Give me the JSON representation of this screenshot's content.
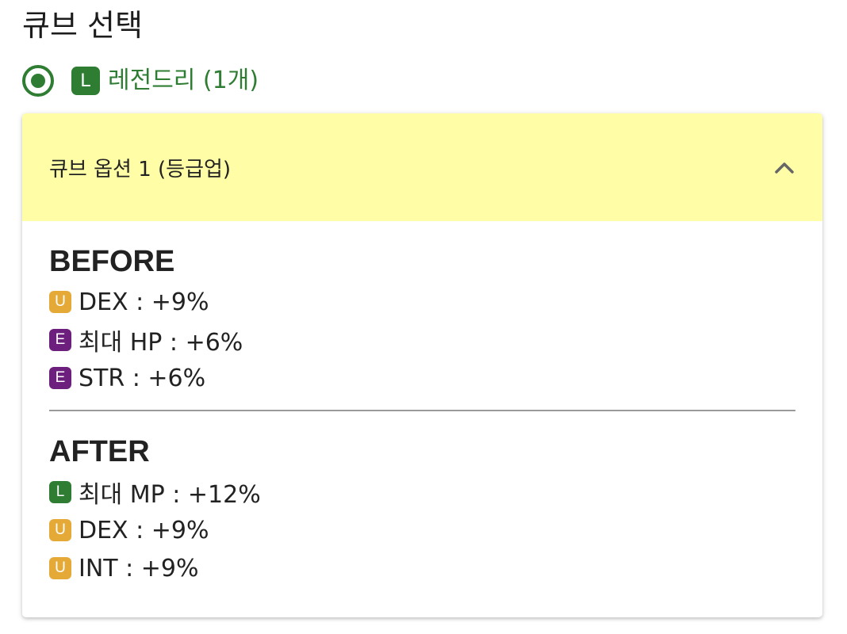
{
  "page": {
    "title": "큐브 선택"
  },
  "selection": {
    "grade": "L",
    "label": "레전드리 (1개)",
    "accent_color": "#2e7d32"
  },
  "panel": {
    "title": "큐브 옵션 1 (등급업)",
    "header_color": "#fffea6",
    "toggle_icon": "chevron-up-icon"
  },
  "before": {
    "heading": "BEFORE",
    "options": [
      {
        "grade": "U",
        "text": "DEX : +9%"
      },
      {
        "grade": "E",
        "text": "최대 HP : +6%"
      },
      {
        "grade": "E",
        "text": "STR : +6%"
      }
    ]
  },
  "after": {
    "heading": "AFTER",
    "options": [
      {
        "grade": "L",
        "text": "최대 MP : +12%"
      },
      {
        "grade": "U",
        "text": "DEX : +9%"
      },
      {
        "grade": "U",
        "text": "INT : +9%"
      }
    ]
  },
  "grade_colors": {
    "L": "#2e7d32",
    "U": "#e5a937",
    "E": "#6c1f7d"
  }
}
